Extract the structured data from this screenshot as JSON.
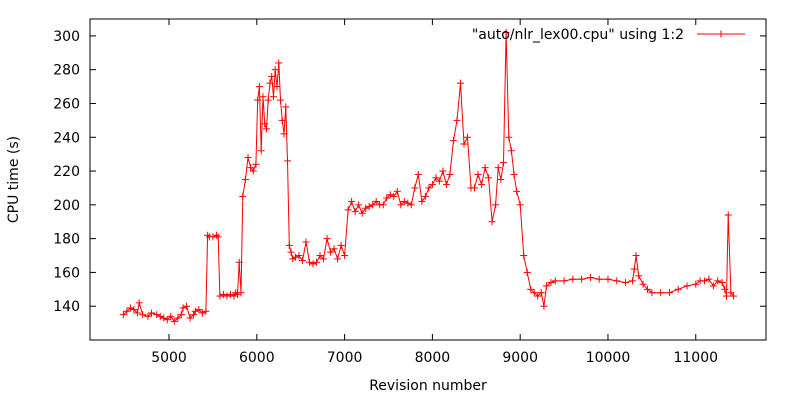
{
  "chart_data": {
    "type": "line",
    "xlabel": "Revision number",
    "ylabel": "CPU time (s)",
    "xlim": [
      4100,
      11800
    ],
    "ylim": [
      120,
      310
    ],
    "x_ticks": [
      5000,
      6000,
      7000,
      8000,
      9000,
      10000,
      11000
    ],
    "y_ticks": [
      140,
      160,
      180,
      200,
      220,
      240,
      260,
      280,
      300
    ],
    "grid": false,
    "legend_position": "top-right",
    "series": [
      {
        "name": "\"auto/nlr_lex00.cpu\" using 1:2",
        "color": "#ff0000",
        "marker": "plus",
        "x": [
          4480,
          4520,
          4560,
          4600,
          4640,
          4660,
          4700,
          4760,
          4800,
          4860,
          4900,
          4940,
          4980,
          5020,
          5060,
          5100,
          5140,
          5160,
          5200,
          5240,
          5280,
          5300,
          5340,
          5380,
          5420,
          5440,
          5460,
          5500,
          5540,
          5560,
          5580,
          5620,
          5660,
          5700,
          5740,
          5760,
          5780,
          5800,
          5820,
          5840,
          5870,
          5900,
          5930,
          5960,
          5990,
          6010,
          6030,
          6050,
          6070,
          6090,
          6110,
          6130,
          6150,
          6170,
          6190,
          6210,
          6230,
          6250,
          6270,
          6290,
          6310,
          6330,
          6350,
          6370,
          6390,
          6410,
          6440,
          6480,
          6520,
          6560,
          6600,
          6640,
          6680,
          6720,
          6760,
          6800,
          6840,
          6880,
          6920,
          6960,
          7000,
          7040,
          7080,
          7120,
          7160,
          7200,
          7240,
          7280,
          7320,
          7360,
          7400,
          7440,
          7480,
          7520,
          7560,
          7600,
          7640,
          7680,
          7720,
          7760,
          7800,
          7840,
          7880,
          7920,
          7960,
          8000,
          8040,
          8080,
          8120,
          8160,
          8200,
          8240,
          8280,
          8320,
          8360,
          8400,
          8440,
          8480,
          8520,
          8560,
          8600,
          8640,
          8680,
          8720,
          8750,
          8780,
          8810,
          8840,
          8870,
          8900,
          8930,
          8960,
          9000,
          9040,
          9080,
          9120,
          9160,
          9200,
          9240,
          9270,
          9300,
          9350,
          9400,
          9500,
          9600,
          9700,
          9800,
          9900,
          10000,
          10100,
          10200,
          10280,
          10300,
          10320,
          10350,
          10400,
          10450,
          10500,
          10600,
          10700,
          10800,
          10900,
          11000,
          11050,
          11100,
          11150,
          11200,
          11250,
          11300,
          11330,
          11350,
          11370,
          11400,
          11430
        ],
        "y": [
          135,
          137,
          139,
          138,
          136,
          142,
          135,
          134,
          136,
          135,
          134,
          133,
          132,
          134,
          131,
          133,
          135,
          139,
          140,
          133,
          135,
          137,
          138,
          136,
          137,
          182,
          181,
          181,
          182,
          181,
          146,
          147,
          146,
          147,
          146,
          148,
          147,
          166,
          148,
          205,
          215,
          228,
          222,
          220,
          224,
          262,
          270,
          232,
          264,
          248,
          245,
          262,
          272,
          276,
          264,
          280,
          270,
          284,
          262,
          250,
          242,
          258,
          226,
          176,
          172,
          168,
          169,
          170,
          167,
          178,
          166,
          165,
          166,
          170,
          168,
          180,
          172,
          174,
          168,
          176,
          170,
          197,
          202,
          196,
          200,
          195,
          198,
          199,
          200,
          202,
          200,
          200,
          204,
          206,
          205,
          208,
          200,
          202,
          201,
          200,
          210,
          218,
          202,
          205,
          210,
          212,
          216,
          214,
          220,
          212,
          218,
          238,
          250,
          272,
          236,
          240,
          210,
          210,
          218,
          212,
          222,
          216,
          190,
          200,
          222,
          215,
          225,
          302,
          240,
          232,
          218,
          208,
          200,
          170,
          160,
          150,
          148,
          146,
          148,
          140,
          152,
          154,
          155,
          155,
          156,
          156,
          157,
          156,
          156,
          155,
          154,
          155,
          162,
          170,
          158,
          153,
          150,
          148,
          148,
          148,
          150,
          152,
          153,
          155,
          155,
          156,
          152,
          155,
          154,
          150,
          146,
          194,
          148,
          146
        ]
      }
    ]
  }
}
